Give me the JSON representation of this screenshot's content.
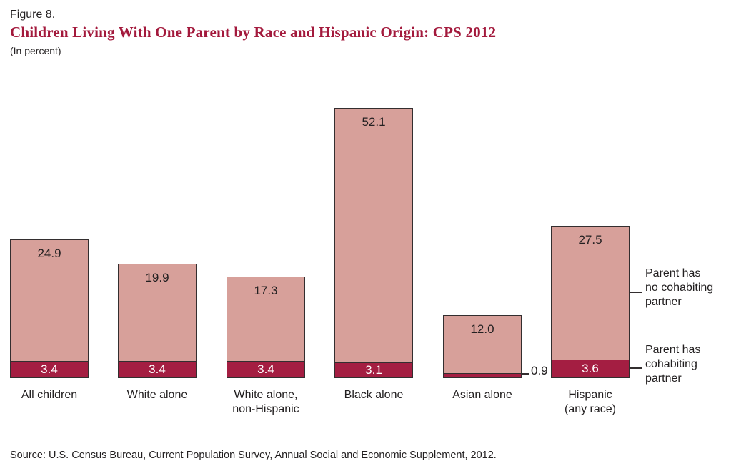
{
  "header": {
    "figure_label": "Figure 8.",
    "title": "Children Living With One Parent by Race and Hispanic Origin: CPS 2012",
    "subtitle": "(In percent)",
    "title_color": "#a3193c"
  },
  "chart_data": {
    "type": "bar",
    "stacked": true,
    "title": "Children Living With One Parent by Race and Hispanic Origin: CPS 2012",
    "unit": "percent",
    "xlabel": "",
    "ylabel": "",
    "ylim": [
      0,
      56
    ],
    "grid": false,
    "legend_position": "right",
    "categories": [
      "All children",
      "White alone",
      "White alone,\nnon-Hispanic",
      "Black alone",
      "Asian alone",
      "Hispanic\n(any race)"
    ],
    "series": [
      {
        "name": "Parent has no cohabiting partner",
        "color": "#d7a09a",
        "values": [
          24.9,
          19.9,
          17.3,
          52.1,
          12.0,
          27.5
        ],
        "labels": [
          "24.9",
          "19.9",
          "17.3",
          "52.1",
          "12.0",
          "27.5"
        ]
      },
      {
        "name": "Parent has cohabiting partner",
        "color": "#a41e42",
        "values": [
          3.4,
          3.4,
          3.4,
          3.1,
          0.9,
          3.6
        ],
        "labels": [
          "3.4",
          "3.4",
          "3.4",
          "3.1",
          "0.9",
          "3.6"
        ]
      }
    ]
  },
  "legend": {
    "no_partner_label": "Parent has\nno cohabiting\npartner",
    "partner_label": "Parent has\ncohabiting\npartner"
  },
  "source": "Source: U.S. Census Bureau, Current Population Survey, Annual Social and Economic Supplement, 2012."
}
